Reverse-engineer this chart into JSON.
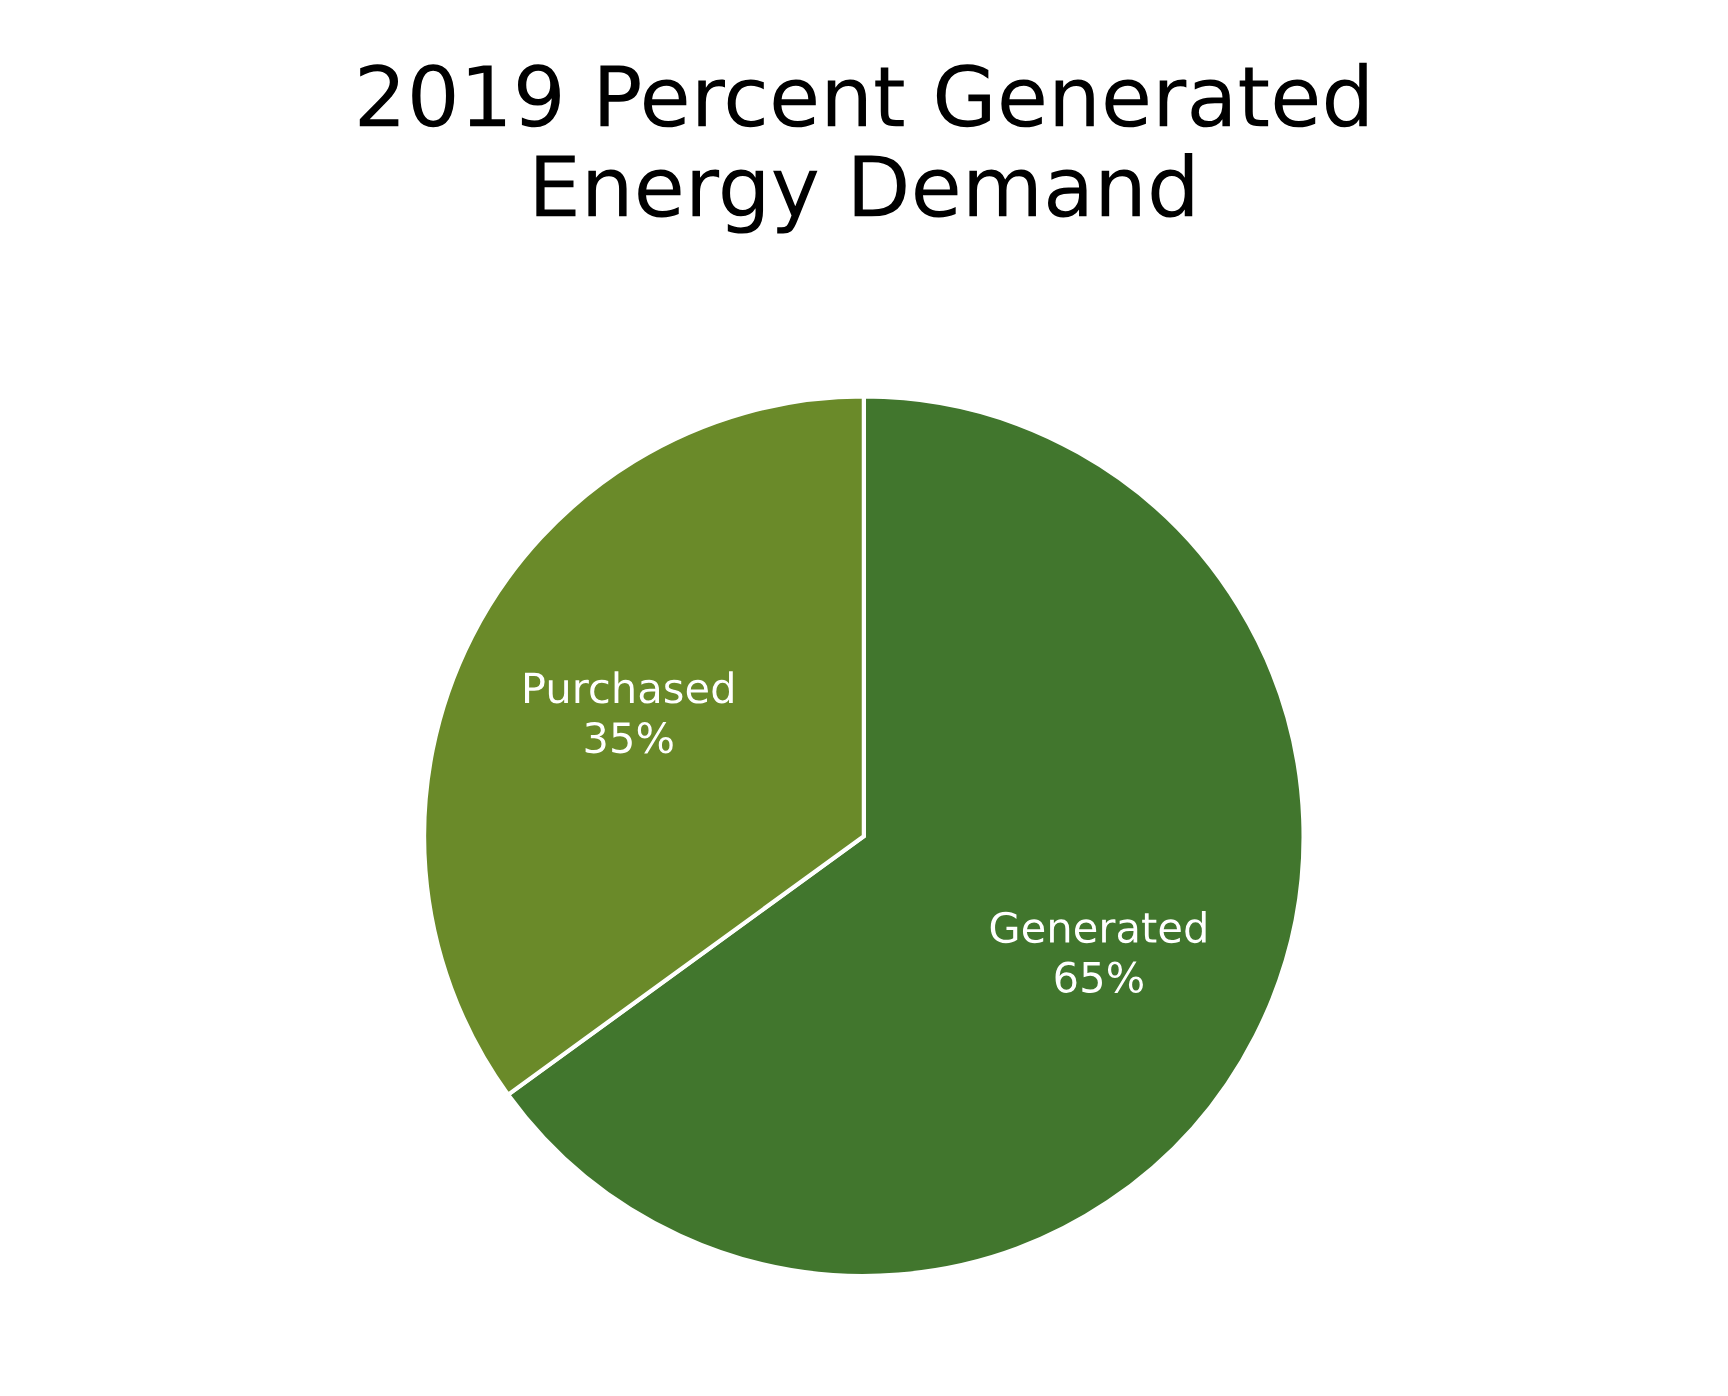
{
  "chart_data": {
    "type": "pie",
    "title": "2019 Percent Generated\nEnergy Demand",
    "categories": [
      "Generated",
      "Purchased"
    ],
    "values": [
      65,
      35
    ],
    "value_labels": [
      "65%",
      "35%"
    ],
    "colors": [
      "#41762d",
      "#6a8a29"
    ],
    "legend": false
  }
}
